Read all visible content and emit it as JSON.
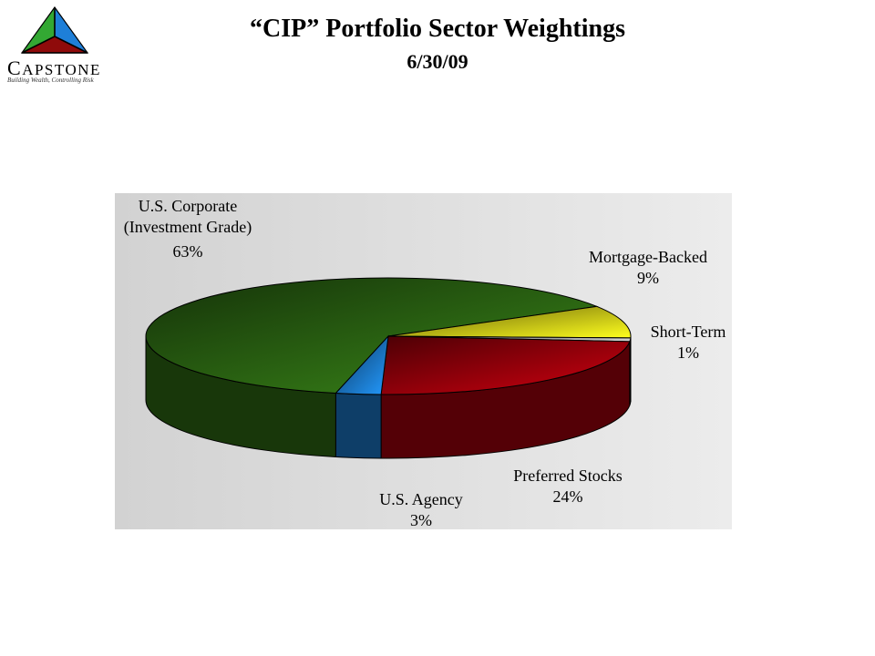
{
  "header": {
    "title": "“CIP” Portfolio Sector Weightings",
    "subtitle": "6/30/09"
  },
  "logo": {
    "name_initial": "C",
    "name_rest": "APSTONE",
    "tagline": "Building Wealth, Controlling Risk",
    "colors": [
      "#2f9e2f",
      "#1f78d4",
      "#8b0000",
      "#000000"
    ]
  },
  "chart_data": {
    "type": "pie",
    "style": "3d",
    "title": "“CIP” Portfolio Sector Weightings",
    "subtitle": "6/30/09",
    "slices": [
      {
        "label_lines": [
          "U.S. Corporate",
          "(Investment Grade)"
        ],
        "value": 63,
        "value_label": "63%",
        "color": "#2f6e14"
      },
      {
        "label_lines": [
          "Mortgage-Backed"
        ],
        "value": 9,
        "value_label": "9%",
        "color": "#e0d418"
      },
      {
        "label_lines": [
          "Short-Term"
        ],
        "value": 1,
        "value_label": "1%",
        "color": "#b8b8b8"
      },
      {
        "label_lines": [
          "Preferred Stocks"
        ],
        "value": 24,
        "value_label": "24%",
        "color": "#a8000c"
      },
      {
        "label_lines": [
          "U.S. Agency"
        ],
        "value": 3,
        "value_label": "3%",
        "color": "#1c7bd0"
      }
    ]
  }
}
